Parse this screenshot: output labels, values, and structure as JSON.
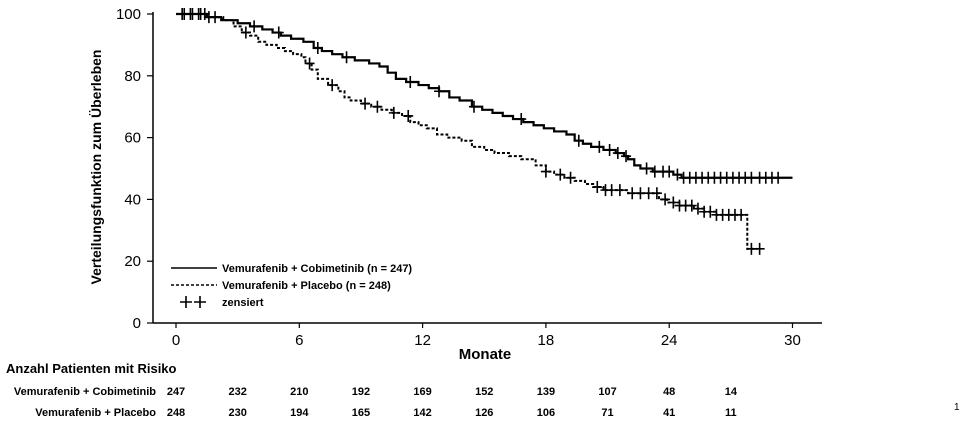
{
  "chart_data": {
    "type": "line",
    "title": "",
    "xlabel": "Monate",
    "ylabel": "Verteilungsfunktion zum Überleben",
    "xlim": [
      0,
      30
    ],
    "ylim": [
      0,
      100
    ],
    "xticks": [
      "0",
      "6",
      "12",
      "18",
      "24",
      "30"
    ],
    "yticks": [
      "0",
      "20",
      "40",
      "60",
      "80",
      "100"
    ],
    "grid": false,
    "legend_position": "bottom-left",
    "legend": [
      {
        "label": "Vemurafenib + Cobimetinib (n = 247)",
        "style": "solid"
      },
      {
        "label": "Vemurafenib + Placebo (n = 248)",
        "style": "dashed"
      },
      {
        "label": "zensiert",
        "style": "censor-marker"
      }
    ],
    "series": [
      {
        "name": "Vemurafenib + Cobimetinib (n = 247)",
        "style": "solid",
        "steps": [
          [
            0,
            100
          ],
          [
            1.5,
            99
          ],
          [
            2.2,
            98
          ],
          [
            3.0,
            97
          ],
          [
            3.6,
            96
          ],
          [
            4.2,
            95
          ],
          [
            4.7,
            94
          ],
          [
            5.1,
            93
          ],
          [
            5.6,
            92
          ],
          [
            6.2,
            91
          ],
          [
            6.7,
            89
          ],
          [
            7.1,
            88
          ],
          [
            7.6,
            87
          ],
          [
            8.1,
            86
          ],
          [
            8.7,
            85
          ],
          [
            9.4,
            84
          ],
          [
            9.9,
            83
          ],
          [
            10.3,
            81
          ],
          [
            10.7,
            79
          ],
          [
            11.2,
            78
          ],
          [
            11.8,
            77
          ],
          [
            12.3,
            76
          ],
          [
            12.8,
            75
          ],
          [
            13.3,
            73
          ],
          [
            13.8,
            72
          ],
          [
            14.4,
            70
          ],
          [
            14.9,
            69
          ],
          [
            15.4,
            68
          ],
          [
            15.9,
            67
          ],
          [
            16.4,
            66
          ],
          [
            16.9,
            65
          ],
          [
            17.4,
            64
          ],
          [
            17.9,
            63
          ],
          [
            18.4,
            62
          ],
          [
            19.0,
            61
          ],
          [
            19.4,
            59
          ],
          [
            19.8,
            58
          ],
          [
            20.2,
            57
          ],
          [
            20.8,
            56
          ],
          [
            21.4,
            55
          ],
          [
            21.8,
            54
          ],
          [
            22.0,
            53
          ],
          [
            22.3,
            51
          ],
          [
            22.6,
            50
          ],
          [
            23.2,
            49
          ],
          [
            24.2,
            48
          ],
          [
            24.6,
            47
          ],
          [
            30,
            47
          ]
        ],
        "end": 29.8
      },
      {
        "name": "Vemurafenib + Placebo (n = 248)",
        "style": "dashed",
        "steps": [
          [
            0,
            100
          ],
          [
            1.5,
            99
          ],
          [
            2.3,
            98
          ],
          [
            2.8,
            96
          ],
          [
            3.2,
            94
          ],
          [
            3.6,
            93
          ],
          [
            4.0,
            91
          ],
          [
            4.4,
            90
          ],
          [
            4.9,
            89
          ],
          [
            5.3,
            88
          ],
          [
            5.7,
            87
          ],
          [
            6.1,
            86
          ],
          [
            6.3,
            84
          ],
          [
            6.6,
            82
          ],
          [
            6.9,
            79
          ],
          [
            7.4,
            77
          ],
          [
            7.9,
            75
          ],
          [
            8.2,
            73
          ],
          [
            8.5,
            72
          ],
          [
            9.0,
            71
          ],
          [
            9.5,
            70
          ],
          [
            10.0,
            69
          ],
          [
            10.5,
            68
          ],
          [
            11.0,
            67
          ],
          [
            11.4,
            65
          ],
          [
            11.8,
            64
          ],
          [
            12.2,
            63
          ],
          [
            12.7,
            61
          ],
          [
            13.2,
            60
          ],
          [
            13.9,
            59
          ],
          [
            14.4,
            57
          ],
          [
            15.0,
            56
          ],
          [
            15.5,
            55
          ],
          [
            16.2,
            54
          ],
          [
            16.8,
            53
          ],
          [
            17.5,
            51
          ],
          [
            18.0,
            49
          ],
          [
            18.4,
            48
          ],
          [
            18.9,
            47
          ],
          [
            19.4,
            46
          ],
          [
            19.9,
            45
          ],
          [
            20.3,
            44
          ],
          [
            20.8,
            43
          ],
          [
            22.0,
            42
          ],
          [
            23.5,
            40
          ],
          [
            23.9,
            39
          ],
          [
            24.5,
            38
          ],
          [
            25.2,
            37
          ],
          [
            25.7,
            36
          ],
          [
            26.3,
            35
          ],
          [
            27.8,
            35
          ],
          [
            27.8,
            24
          ],
          [
            28.3,
            24
          ]
        ],
        "end": 28.3
      }
    ],
    "censor_marks": [
      {
        "series": "Vemurafenib + Cobimetinib (n = 247)",
        "x": [
          0.4,
          0.8,
          1.2,
          1.6,
          3.8,
          5.0,
          6.9,
          8.3,
          11.4,
          12.8,
          14.5,
          16.8,
          19.6,
          20.6,
          21.1,
          21.5,
          21.9,
          22.9,
          23.3,
          23.7,
          24.0,
          24.4,
          24.7,
          25.0,
          25.3,
          25.6,
          25.9,
          26.2,
          26.5,
          26.8,
          27.1,
          27.4,
          27.7,
          28.0,
          28.4,
          28.7,
          29.0,
          29.3
        ]
      },
      {
        "series": "Vemurafenib + Placebo (n = 248)",
        "x": [
          0.3,
          0.7,
          1.1,
          1.4,
          1.9,
          3.4,
          6.5,
          7.6,
          9.2,
          9.8,
          10.6,
          11.3,
          18.0,
          18.7,
          19.2,
          20.5,
          20.9,
          21.2,
          21.6,
          22.2,
          22.6,
          23.0,
          23.4,
          23.8,
          24.2,
          24.5,
          24.8,
          25.1,
          25.4,
          25.7,
          26.0,
          26.3,
          26.6,
          26.9,
          27.2,
          27.5,
          28.0,
          28.4
        ]
      }
    ],
    "risk_table": {
      "title": "Anzahl Patienten mit Risiko",
      "x": [
        0,
        3,
        6,
        9,
        12,
        15,
        18,
        21,
        24,
        27
      ],
      "rows": [
        {
          "label": "Vemurafenib + Cobimetinib",
          "values": [
            "247",
            "232",
            "210",
            "192",
            "169",
            "152",
            "139",
            "107",
            "48",
            "14"
          ]
        },
        {
          "label": "Vemurafenib + Placebo",
          "values": [
            "248",
            "230",
            "194",
            "165",
            "142",
            "126",
            "106",
            "71",
            "41",
            "11"
          ]
        }
      ]
    }
  },
  "page": {
    "number": "1"
  }
}
